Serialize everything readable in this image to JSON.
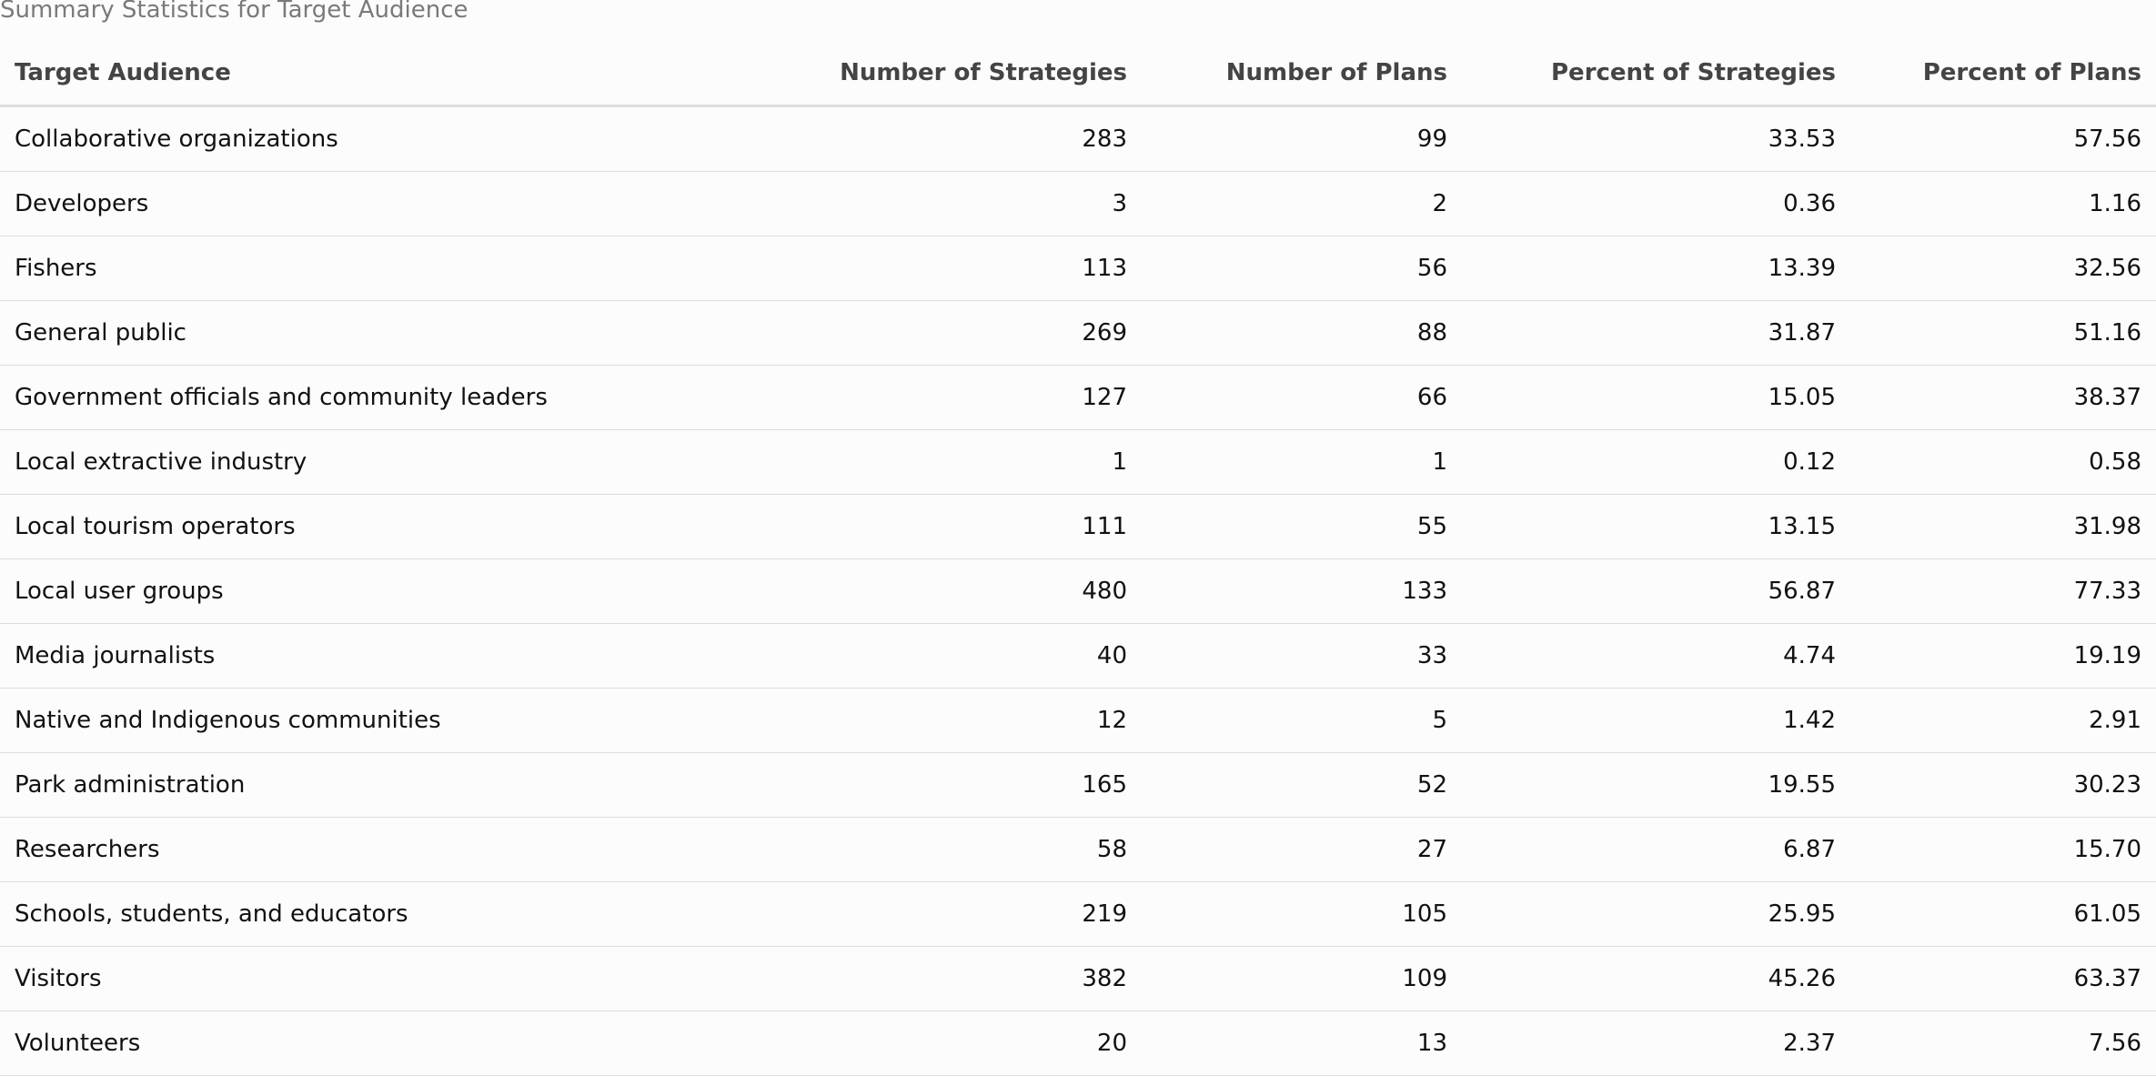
{
  "caption": "Summary Statistics for Target Audience",
  "table": {
    "columns": [
      {
        "label": "Target Audience",
        "align": "left"
      },
      {
        "label": "Number of Strategies",
        "align": "right"
      },
      {
        "label": "Number of Plans",
        "align": "right"
      },
      {
        "label": "Percent of Strategies",
        "align": "right"
      },
      {
        "label": "Percent of Plans",
        "align": "right"
      }
    ],
    "rows": [
      [
        "Collaborative organizations",
        "283",
        "99",
        "33.53",
        "57.56"
      ],
      [
        "Developers",
        "3",
        "2",
        "0.36",
        "1.16"
      ],
      [
        "Fishers",
        "113",
        "56",
        "13.39",
        "32.56"
      ],
      [
        "General public",
        "269",
        "88",
        "31.87",
        "51.16"
      ],
      [
        "Government officials and community leaders",
        "127",
        "66",
        "15.05",
        "38.37"
      ],
      [
        "Local extractive industry",
        "1",
        "1",
        "0.12",
        "0.58"
      ],
      [
        "Local tourism operators",
        "111",
        "55",
        "13.15",
        "31.98"
      ],
      [
        "Local user groups",
        "480",
        "133",
        "56.87",
        "77.33"
      ],
      [
        "Media journalists",
        "40",
        "33",
        "4.74",
        "19.19"
      ],
      [
        "Native and Indigenous communities",
        "12",
        "5",
        "1.42",
        "2.91"
      ],
      [
        "Park administration",
        "165",
        "52",
        "19.55",
        "30.23"
      ],
      [
        "Researchers",
        "58",
        "27",
        "6.87",
        "15.70"
      ],
      [
        "Schools, students, and educators",
        "219",
        "105",
        "25.95",
        "61.05"
      ],
      [
        "Visitors",
        "382",
        "109",
        "45.26",
        "63.37"
      ],
      [
        "Volunteers",
        "20",
        "13",
        "2.37",
        "7.56"
      ]
    ]
  }
}
